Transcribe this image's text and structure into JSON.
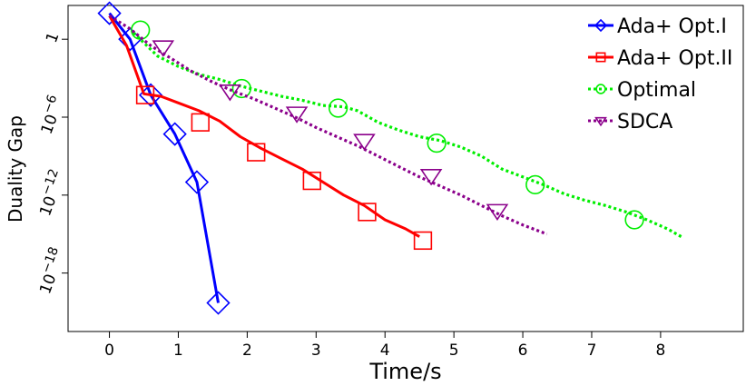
{
  "chart_data": {
    "type": "line",
    "title": "",
    "xlabel": "Time/s",
    "ylabel": "Duality Gap",
    "xlim": [
      -0.6,
      9.2
    ],
    "ylim_log10": [
      -22.5,
      2.6
    ],
    "y_scale": "log",
    "x_ticks": [
      0,
      1,
      2,
      3,
      4,
      5,
      6,
      7,
      8
    ],
    "x_tick_labels": [
      "0",
      "1",
      "2",
      "3",
      "4",
      "5",
      "6",
      "7",
      "8"
    ],
    "y_ticks_log10": [
      0,
      -6,
      -12,
      -18
    ],
    "y_tick_labels": [
      {
        "base": "1",
        "exp": ""
      },
      {
        "base": "10",
        "exp": "−6"
      },
      {
        "base": "10",
        "exp": "−12"
      },
      {
        "base": "10",
        "exp": "−18"
      }
    ],
    "legend_position": "top-right",
    "series": [
      {
        "name": "Ada+ Opt.I",
        "color": "#0000ff",
        "style": "solid",
        "marker": "diamond",
        "x": [
          0.0,
          0.3,
          0.6,
          0.95,
          1.27,
          1.58
        ],
        "log10_y": [
          2.0,
          0.0,
          -4.3,
          -7.3,
          -11.0,
          -20.3
        ],
        "marker_x": [
          0.0,
          0.3,
          0.6,
          0.95,
          1.27,
          1.58
        ],
        "marker_log10_y": [
          2.0,
          0.0,
          -4.3,
          -7.3,
          -11.0,
          -20.3
        ]
      },
      {
        "name": "Ada+ Opt.II",
        "color": "#ff0000",
        "style": "solid",
        "marker": "square",
        "x": [
          0.0,
          0.25,
          0.5,
          0.75,
          1.0,
          1.3,
          1.6,
          1.9,
          2.2,
          2.5,
          2.8,
          3.1,
          3.4,
          3.7,
          4.0,
          4.3,
          4.5
        ],
        "log10_y": [
          1.8,
          -0.5,
          -4.2,
          -4.4,
          -4.9,
          -5.5,
          -6.3,
          -7.5,
          -8.4,
          -9.2,
          -10.0,
          -11.0,
          -12.0,
          -12.8,
          -13.9,
          -14.6,
          -15.2
        ],
        "marker_x": [
          0.52,
          1.32,
          2.13,
          2.94,
          3.74,
          4.55
        ],
        "marker_log10_y": [
          -4.3,
          -6.4,
          -8.7,
          -10.9,
          -13.3,
          -15.5
        ]
      },
      {
        "name": "Optimal",
        "color": "#00ee00",
        "style": "dotted",
        "marker": "circle",
        "x": [
          0.35,
          0.7,
          1.0,
          1.3,
          1.6,
          1.9,
          2.2,
          2.5,
          2.8,
          3.1,
          3.4,
          3.6,
          3.9,
          4.2,
          4.5,
          4.8,
          5.1,
          5.4,
          5.7,
          6.0,
          6.3,
          6.6,
          6.9,
          7.2,
          7.5,
          7.8,
          8.1,
          8.3
        ],
        "log10_y": [
          0.5,
          -1.3,
          -2.1,
          -2.7,
          -3.1,
          -3.6,
          -4.0,
          -4.4,
          -4.7,
          -5.1,
          -5.2,
          -5.5,
          -6.4,
          -7.0,
          -7.5,
          -7.8,
          -8.3,
          -9.0,
          -10.0,
          -10.6,
          -11.2,
          -11.9,
          -12.4,
          -12.8,
          -13.3,
          -13.9,
          -14.6,
          -15.2
        ],
        "marker_x": [
          0.45,
          1.92,
          3.32,
          4.75,
          6.18,
          7.62
        ],
        "marker_log10_y": [
          0.7,
          -3.8,
          -5.3,
          -8.0,
          -11.2,
          -13.9
        ]
      },
      {
        "name": "SDCA",
        "color": "#8b008b",
        "style": "dotted",
        "marker": "triangle-down",
        "x": [
          0.0,
          0.3,
          0.6,
          0.9,
          1.2,
          1.5,
          1.8,
          2.1,
          2.4,
          2.7,
          3.0,
          3.3,
          3.6,
          3.9,
          4.2,
          4.5,
          4.8,
          5.1,
          5.4,
          5.7,
          6.0,
          6.35
        ],
        "log10_y": [
          1.8,
          0.8,
          -0.5,
          -1.5,
          -2.5,
          -3.3,
          -4.0,
          -4.6,
          -5.3,
          -6.0,
          -6.8,
          -7.5,
          -8.2,
          -9.0,
          -9.8,
          -10.6,
          -11.3,
          -12.0,
          -12.8,
          -13.6,
          -14.3,
          -15.0
        ],
        "marker_x": [
          0.78,
          1.75,
          2.72,
          3.7,
          4.67,
          5.63
        ],
        "marker_log10_y": [
          -0.6,
          -4.0,
          -5.7,
          -7.8,
          -10.5,
          -13.2
        ]
      }
    ]
  }
}
